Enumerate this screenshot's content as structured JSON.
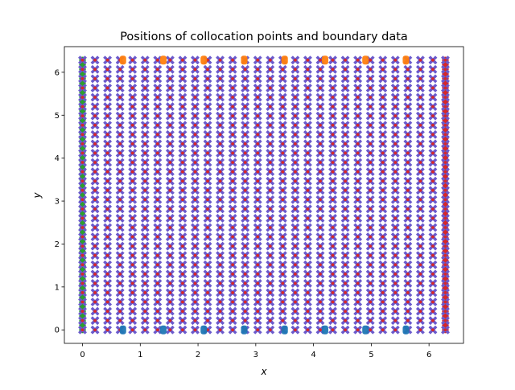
{
  "chart_data": {
    "type": "scatter",
    "title": "Positions of collocation points and boundary data",
    "xlabel": "x",
    "ylabel": "y",
    "xlim": [
      -0.314,
      6.597
    ],
    "ylim": [
      -0.314,
      6.597
    ],
    "xticks": [
      0,
      1,
      2,
      3,
      4,
      5,
      6
    ],
    "yticks": [
      0,
      1,
      2,
      3,
      4,
      5,
      6
    ],
    "grid": false,
    "legend": "none",
    "collocation_grid": {
      "x_start": 0,
      "x_end": 6.2832,
      "x_count": 30,
      "y_start": 0,
      "y_end": 6.2832,
      "y_count": 30,
      "marker": "X",
      "fill_color": "#6a5acd",
      "center_color": "#d62728"
    },
    "boundary_bottom": {
      "y": 0,
      "x": [
        0,
        0.7,
        1.4,
        2.1,
        2.8,
        3.5,
        4.2,
        4.9,
        5.6
      ],
      "color": "#1f77b4"
    },
    "boundary_top": {
      "y": 6.2832,
      "x": [
        0,
        0.7,
        1.4,
        2.1,
        2.8,
        3.5,
        4.2,
        4.9,
        5.6
      ],
      "color": "#ff7f0e"
    },
    "boundary_left": {
      "x": 0,
      "y_start": 0,
      "y_end": 6.2832,
      "y_count": 60,
      "color": "#2ca02c"
    },
    "boundary_right": {
      "x": 6.2832,
      "y_start": 0,
      "y_end": 6.2832,
      "y_count": 60,
      "color": "#d62728"
    }
  }
}
